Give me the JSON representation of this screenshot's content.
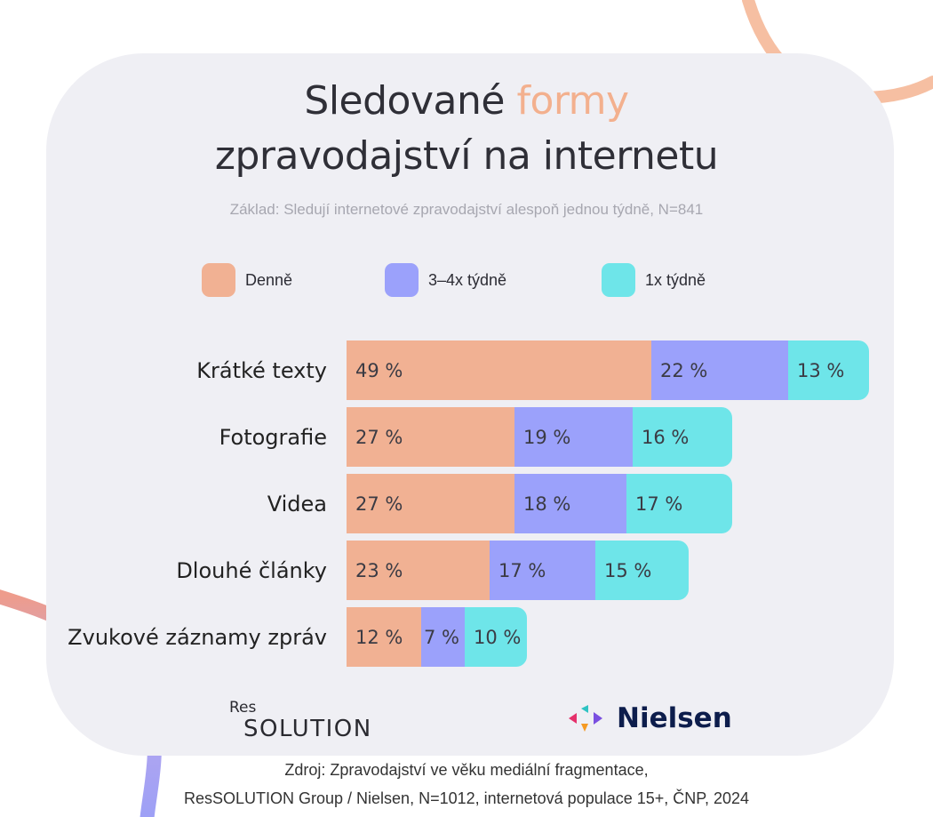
{
  "title": {
    "line1_main": "Sledované",
    "line1_accent": "formy",
    "line2": "zpravodajství na internetu"
  },
  "subtitle": "Základ: Sledují internetové zpravodajství alespoň jednou týdně, N=841",
  "colors": {
    "denne": "#f1b193",
    "tydne34": "#9ba1fb",
    "tydne1": "#6ee5e9",
    "accent": "#f3b08e",
    "card": "#efeff4"
  },
  "chart_data": {
    "type": "bar",
    "orientation": "horizontal",
    "stacked": true,
    "categories": [
      "Krátké texty",
      "Fotografie",
      "Videa",
      "Dlouhé články",
      "Zvukové záznamy zpráv"
    ],
    "series": [
      {
        "name": "Denně",
        "values": [
          49,
          27,
          27,
          23,
          12
        ],
        "labels": [
          "49 %",
          "27 %",
          "27 %",
          "23 %",
          "12 %"
        ]
      },
      {
        "name": "3–4x týdně",
        "values": [
          22,
          19,
          18,
          17,
          7
        ],
        "labels": [
          "22 %",
          "19 %",
          "18 %",
          "17 %",
          "7 %"
        ]
      },
      {
        "name": "1x týdně",
        "values": [
          13,
          16,
          17,
          15,
          10
        ],
        "labels": [
          "13 %",
          "16 %",
          "17 %",
          "15 %",
          "10 %"
        ]
      }
    ],
    "legend_position": "top",
    "grid": false
  },
  "logos": {
    "res_small": "Res",
    "res_big": "SOLUTION",
    "nielsen": "Nielsen"
  },
  "source": {
    "line1": "Zdroj: Zpravodajství ve věku mediální fragmentace,",
    "line2": "ResSOLUTION Group / Nielsen, N=1012, internetová populace 15+, ČNP, 2024"
  }
}
